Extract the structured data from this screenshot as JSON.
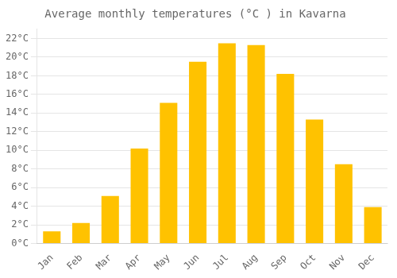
{
  "chart_data": {
    "type": "bar",
    "title": "Average monthly temperatures (°C ) in Kavarna",
    "categories": [
      "Jan",
      "Feb",
      "Mar",
      "Apr",
      "May",
      "Jun",
      "Jul",
      "Aug",
      "Sep",
      "Oct",
      "Nov",
      "Dec"
    ],
    "values": [
      1.3,
      2.2,
      5.1,
      10.2,
      15.1,
      19.5,
      21.5,
      21.3,
      18.2,
      13.3,
      8.5,
      3.9
    ],
    "color": "#FFC200",
    "ylim": [
      0,
      23
    ],
    "yticks": [
      {
        "value": 0,
        "label": "0°C"
      },
      {
        "value": 2,
        "label": "2°C"
      },
      {
        "value": 4,
        "label": "4°C"
      },
      {
        "value": 6,
        "label": "6°C"
      },
      {
        "value": 8,
        "label": "8°C"
      },
      {
        "value": 10,
        "label": "10°C"
      },
      {
        "value": 12,
        "label": "12°C"
      },
      {
        "value": 14,
        "label": "14°C"
      },
      {
        "value": 16,
        "label": "16°C"
      },
      {
        "value": 18,
        "label": "18°C"
      },
      {
        "value": 20,
        "label": "20°C"
      },
      {
        "value": 22,
        "label": "22°C"
      }
    ],
    "grid": true
  }
}
